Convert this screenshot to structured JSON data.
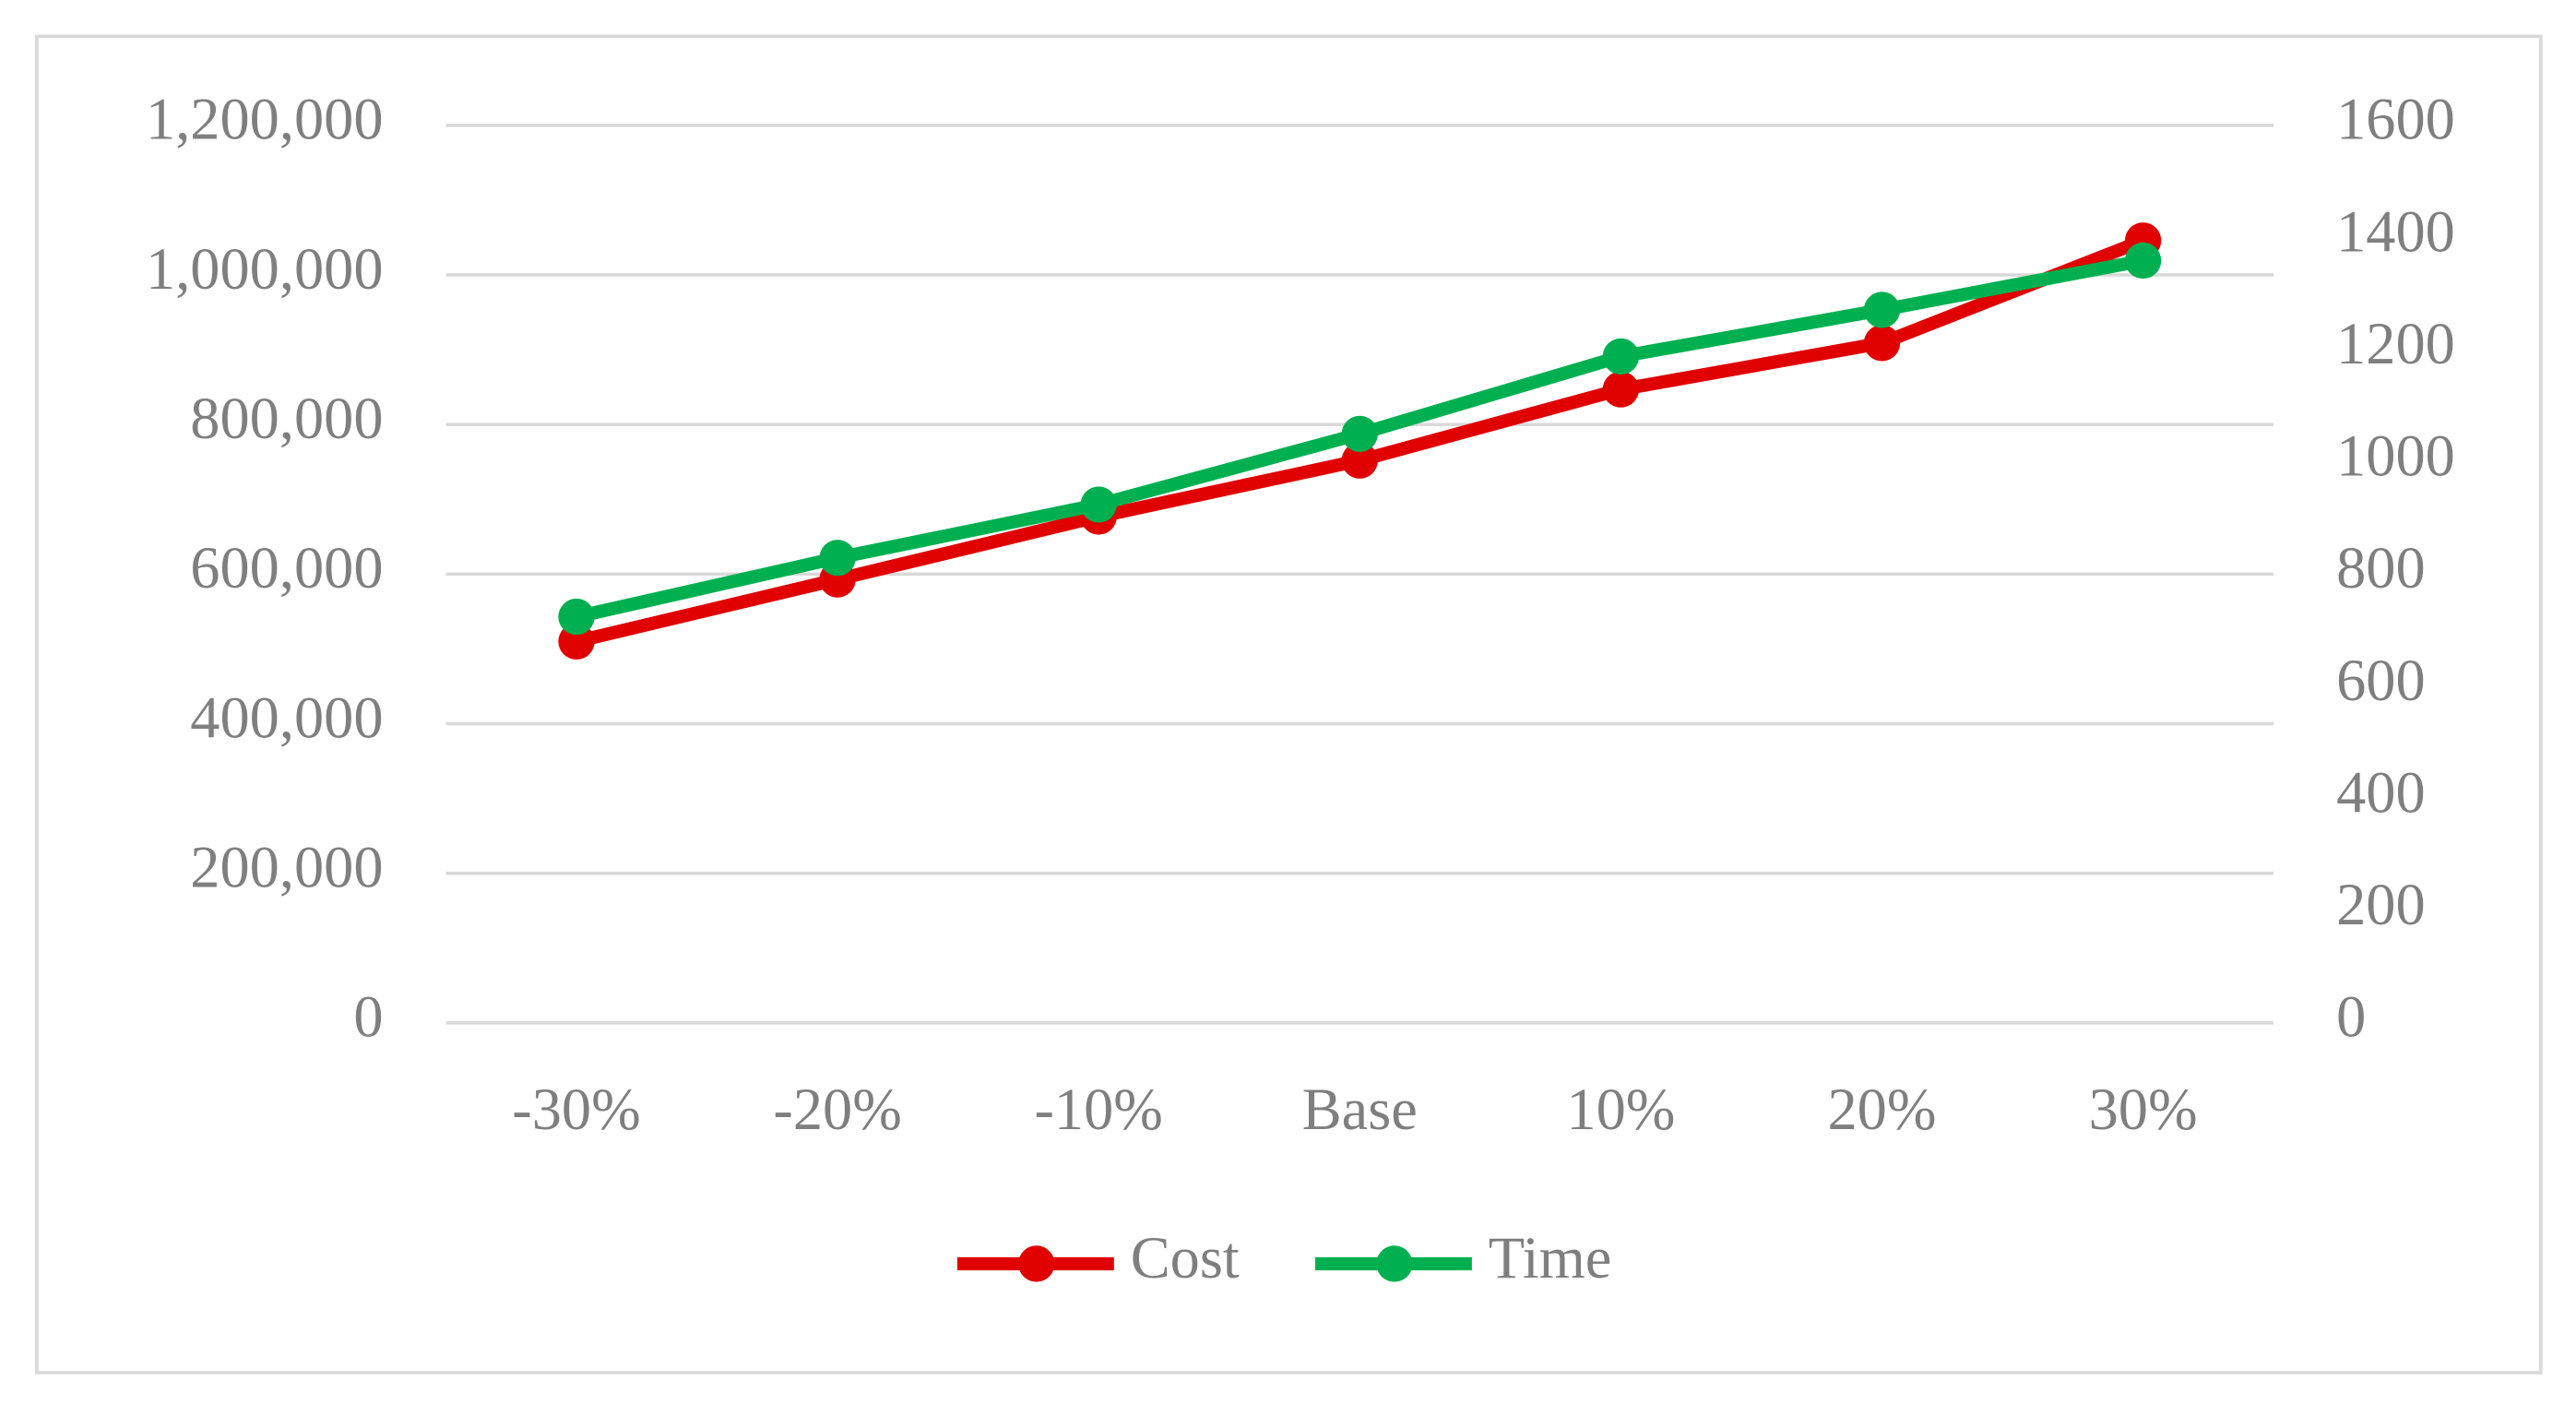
{
  "chart_data": {
    "type": "line",
    "categories": [
      "-30%",
      "-20%",
      "-10%",
      "Base",
      "10%",
      "20%",
      "30%"
    ],
    "series": [
      {
        "name": "Cost",
        "color": "#e00000",
        "values": [
          510000,
          593000,
          677000,
          752000,
          847000,
          909000,
          1046000
        ]
      },
      {
        "name": "Time",
        "color": "#00b050",
        "axis": "y2",
        "values": [
          724,
          829,
          924,
          1050,
          1188,
          1271,
          1359
        ]
      }
    ],
    "ylim": [
      0,
      1200000
    ],
    "yticks": [
      0,
      {
        "value": 200000,
        "label": "200,000"
      },
      {
        "value": 400000,
        "label": "400,000"
      },
      {
        "value": 600000,
        "label": "600,000"
      },
      {
        "value": 800000,
        "label": "800,000"
      },
      {
        "value": 1000000,
        "label": "1,000,000"
      },
      {
        "value": 1200000,
        "label": "1,200,000"
      }
    ],
    "y2lim": [
      0,
      1600
    ],
    "y2ticks": [
      0,
      200,
      400,
      600,
      800,
      1000,
      1200,
      1400,
      1600
    ],
    "grid": true,
    "legend": "bottom"
  }
}
